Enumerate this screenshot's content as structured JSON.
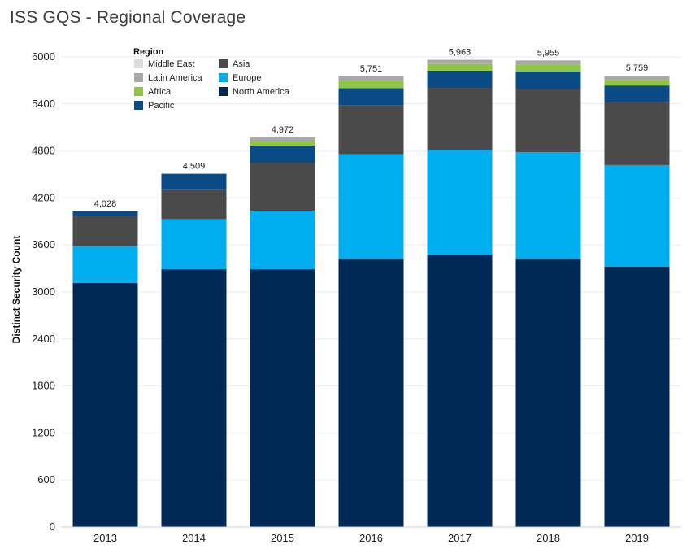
{
  "chart_data": {
    "type": "stacked-bar",
    "title": "ISS GQS - Regional Coverage",
    "xlabel": "",
    "ylabel": "Distinct Security Count",
    "ylim": [
      0,
      6000
    ],
    "yticks": [
      0,
      600,
      1200,
      1800,
      2400,
      3000,
      3600,
      4200,
      4800,
      5400,
      6000
    ],
    "grid": true,
    "legend_title": "Region",
    "legend_position": "top-left",
    "categories": [
      "2013",
      "2014",
      "2015",
      "2016",
      "2017",
      "2018",
      "2019"
    ],
    "totals": [
      4028,
      4509,
      4972,
      5751,
      5963,
      5955,
      5759
    ],
    "totals_display": [
      "4,028",
      "4,509",
      "4,972",
      "5,751",
      "5,963",
      "5,955",
      "5,759"
    ],
    "series": [
      {
        "name": "North America",
        "color": "#002855",
        "values": [
          3115,
          3290,
          3290,
          3420,
          3470,
          3420,
          3325
        ]
      },
      {
        "name": "Europe",
        "color": "#00aeef",
        "values": [
          470,
          640,
          745,
          1340,
          1345,
          1365,
          1295
        ]
      },
      {
        "name": "Asia",
        "color": "#4a4a4a",
        "values": [
          385,
          370,
          615,
          620,
          790,
          800,
          805
        ]
      },
      {
        "name": "Pacific",
        "color": "#0a4a85",
        "values": [
          58,
          209,
          210,
          220,
          220,
          230,
          210
        ]
      },
      {
        "name": "Africa",
        "color": "#8dc63f",
        "values": [
          0,
          0,
          60,
          90,
          85,
          85,
          70
        ]
      },
      {
        "name": "Latin America",
        "color": "#a8a8a8",
        "values": [
          0,
          0,
          52,
          61,
          53,
          55,
          54
        ]
      },
      {
        "name": "Middle East",
        "color": "#dcdcdc",
        "values": [
          0,
          0,
          0,
          0,
          0,
          0,
          0
        ]
      }
    ],
    "legend_order": [
      "Middle East",
      "Asia",
      "Latin America",
      "Europe",
      "Africa",
      "North America",
      "Pacific"
    ]
  }
}
